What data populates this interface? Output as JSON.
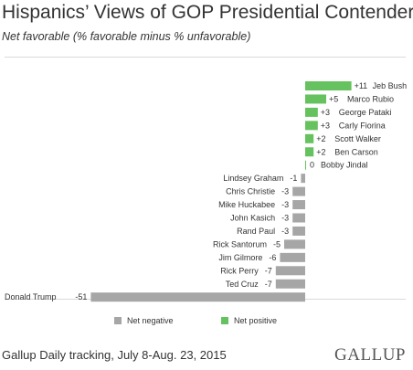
{
  "chart_data": {
    "type": "bar",
    "orientation": "horizontal",
    "title": "Hispanics’ Views of GOP Presidential Contenders",
    "subtitle": "Net favorable (% favorable minus % unfavorable)",
    "categories": [
      "Jeb Bush",
      "Marco Rubio",
      "George Pataki",
      "Carly Fiorina",
      "Scott Walker",
      "Ben Carson",
      "Bobby Jindal",
      "Lindsey Graham",
      "Chris Christie",
      "Mike Huckabee",
      "John Kasich",
      "Rand Paul",
      "Rick Santorum",
      "Jim Gilmore",
      "Rick Perry",
      "Ted Cruz",
      "Donald Trump"
    ],
    "values": [
      11,
      5,
      3,
      3,
      2,
      2,
      0,
      -1,
      -3,
      -3,
      -3,
      -3,
      -5,
      -6,
      -7,
      -7,
      -51
    ],
    "value_labels": [
      "+11",
      "+5",
      "+3",
      "+3",
      "+2",
      "+2",
      "0",
      "-1",
      "-3",
      "-3",
      "-3",
      "-3",
      "-5",
      "-6",
      "-7",
      "-7",
      "-51"
    ],
    "legend": {
      "negative": "Net negative",
      "positive": "Net positive",
      "placement": "bottom"
    },
    "grid": false
  },
  "colors": {
    "positive": "#66c25f",
    "negative": "#a6a6a6",
    "zero_line": "#66c25f",
    "text": "#333333"
  },
  "source": "Gallup Daily tracking, July 8-Aug. 23, 2015",
  "brand": "GALLUP"
}
